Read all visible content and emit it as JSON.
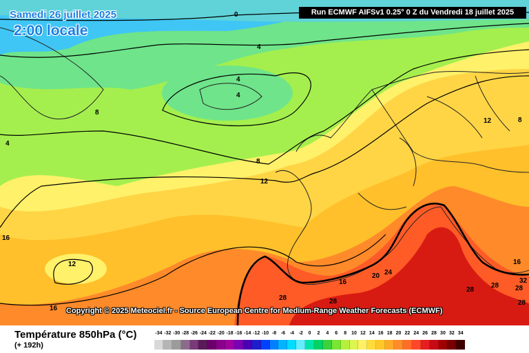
{
  "header": {
    "date": "Samedi 26 juillet 2025",
    "local_time": "2:00 locale",
    "run_info": "Run ECMWF AIFSv1 0.25° 0 Z du Vendredi 18 juillet 2025"
  },
  "copyright": "Copyright © 2025 Meteociel.fr - Source European Centre for Medium-Range Weather Forecasts (ECMWF)",
  "footer": {
    "title": "Température 850hPa (°C)",
    "lead_time": "(+ 192h)"
  },
  "color_scale": {
    "labels": [
      "-34",
      "-32",
      "-30",
      "-28",
      "-26",
      "-24",
      "-22",
      "-20",
      "-18",
      "-16",
      "-14",
      "-12",
      "-10",
      "-8",
      "-6",
      "-4",
      "-2",
      "0",
      "2",
      "4",
      "6",
      "8",
      "10",
      "12",
      "14",
      "16",
      "18",
      "20",
      "22",
      "24",
      "26",
      "28",
      "30",
      "32",
      "34"
    ],
    "colors": [
      "#d9d9d9",
      "#b5b5b5",
      "#9b9b9b",
      "#8c6b8c",
      "#7a3a7a",
      "#5a1a5a",
      "#6b006b",
      "#8b008b",
      "#a000a0",
      "#7a00b4",
      "#4b00b4",
      "#1e1ecc",
      "#0040ff",
      "#0080ff",
      "#00b4ff",
      "#00dcff",
      "#64ecff",
      "#00e6aa",
      "#00d264",
      "#3cd23c",
      "#78e632",
      "#b4f03c",
      "#dcf550",
      "#fff064",
      "#ffdc3c",
      "#ffc828",
      "#ffaa28",
      "#ff8c28",
      "#ff6e28",
      "#ff4628",
      "#e61e1e",
      "#c80a14",
      "#a00000",
      "#780000",
      "#400000"
    ]
  },
  "isotherm_labels": [
    "0",
    "4",
    "4",
    "4",
    "4",
    "8",
    "8",
    "8",
    "12",
    "12",
    "12",
    "16",
    "16",
    "16",
    "20",
    "24",
    "28",
    "28",
    "28",
    "28",
    "28",
    "32",
    "8",
    "12"
  ],
  "colors": {
    "cold": "#3fc6f5",
    "cool": "#6fe48a",
    "mild": "#a4ef4e",
    "warm": "#fff16a",
    "hot": "#ffc02b",
    "very_hot": "#ff5b26",
    "extreme": "#d81b12",
    "land_outline": "#222222"
  }
}
